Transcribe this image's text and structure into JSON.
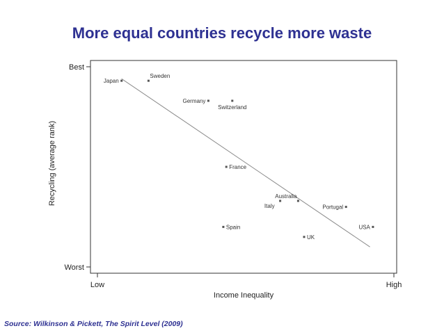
{
  "title": "More equal countries recycle more waste",
  "source": "Source: Wilkinson & Pickett, The Spirit Level (2009)",
  "chart_data": {
    "type": "scatter",
    "xlabel": "Income Inequality",
    "ylabel": "Recycling (average rank)",
    "xlim": [
      0,
      1
    ],
    "ylim": [
      0,
      1
    ],
    "x_tick_labels": [
      {
        "value": 0,
        "label": "Low"
      },
      {
        "value": 1,
        "label": "High"
      }
    ],
    "y_tick_labels": [
      {
        "value": 0,
        "label": "Worst"
      },
      {
        "value": 1,
        "label": "Best"
      }
    ],
    "grid": false,
    "points": [
      {
        "label": "Japan",
        "x": 0.09,
        "y": 0.93,
        "label_pos": "left"
      },
      {
        "label": "Sweden",
        "x": 0.18,
        "y": 0.93,
        "label_pos": "above-right"
      },
      {
        "label": "Germany",
        "x": 0.38,
        "y": 0.83,
        "label_pos": "left"
      },
      {
        "label": "Switzerland",
        "x": 0.46,
        "y": 0.83,
        "label_pos": "below"
      },
      {
        "label": "France",
        "x": 0.44,
        "y": 0.5,
        "label_pos": "right"
      },
      {
        "label": "Australia",
        "x": 0.68,
        "y": 0.33,
        "label_pos": "above-left"
      },
      {
        "label": "Italy",
        "x": 0.62,
        "y": 0.33,
        "label_pos": "below-left"
      },
      {
        "label": "Portugal",
        "x": 0.84,
        "y": 0.3,
        "label_pos": "left"
      },
      {
        "label": "USA",
        "x": 0.93,
        "y": 0.2,
        "label_pos": "left"
      },
      {
        "label": "Spain",
        "x": 0.43,
        "y": 0.2,
        "label_pos": "right"
      },
      {
        "label": "UK",
        "x": 0.7,
        "y": 0.15,
        "label_pos": "right"
      }
    ],
    "trend_line": {
      "x": [
        0.09,
        0.92
      ],
      "y": [
        0.94,
        0.1
      ]
    },
    "colors": {
      "points": "#555555",
      "trend": "#8a8a8a",
      "axis": "#333333",
      "title": "#2e3192"
    }
  }
}
